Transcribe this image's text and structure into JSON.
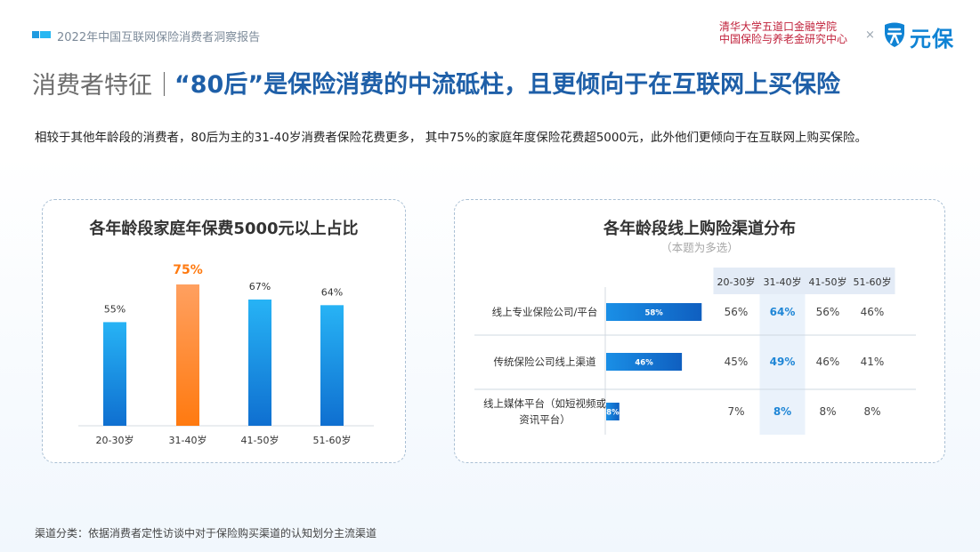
{
  "header": {
    "report_name": "2022年中国互联网保险消费者洞察报告",
    "institution_line1": "清华大学五道口金融学院",
    "institution_line2": "中国保险与养老金研究中心",
    "separator": "×",
    "logo_text": "元保"
  },
  "title": {
    "section": "消费者特征｜",
    "main": "“80后”是保险消费的中流砥柱，且更倾向于在互联网上买保险"
  },
  "subtitle": "相较于其他年龄段的消费者，80后为主的31-40岁消费者保险花费更多， 其中75%的家庭年度保险花费超5000元，此外他们更倾向于在互联网上购买保险。",
  "footnote": "渠道分类：依据消费者定性访谈中对于保险购买渠道的认知划分主流渠道",
  "colors": {
    "bar_blue": "#1b8fe6",
    "bar_highlight": "#ff8a2a",
    "title_blue": "#1e5fa8",
    "highlight_text": "#1f86d6",
    "highlight_col_bg": "#eaf2fb",
    "header_cell_bg": "#e3ebf6"
  },
  "chart_data": [
    {
      "type": "bar",
      "title": "各年龄段家庭年保费5000元以上占比",
      "categories": [
        "20-30岁",
        "31-40岁",
        "41-50岁",
        "51-60岁"
      ],
      "values": [
        55,
        75,
        67,
        64
      ],
      "value_labels": [
        "55%",
        "75%",
        "67%",
        "64%"
      ],
      "highlight_index": 1,
      "ylim": [
        0,
        100
      ]
    },
    {
      "type": "table",
      "title": "各年龄段线上购险渠道分布",
      "note": "（本题为多选）",
      "rows": [
        "线上专业保险公司/平台",
        "传统保险公司线上渠道",
        "线上媒体平台（如短视频或资讯平台）"
      ],
      "row_label_lines": [
        [
          "线上专业保险公司/平台"
        ],
        [
          "传统保险公司线上渠道"
        ],
        [
          "线上媒体平台（如短视频或",
          "资讯平台）"
        ]
      ],
      "overall_values": [
        58,
        46,
        8
      ],
      "overall_labels": [
        "58%",
        "46%",
        "8%"
      ],
      "columns": [
        "20-30岁",
        "31-40岁",
        "41-50岁",
        "51-60岁"
      ],
      "highlight_column": 1,
      "cells": [
        [
          "56%",
          "64%",
          "56%",
          "46%"
        ],
        [
          "45%",
          "49%",
          "46%",
          "41%"
        ],
        [
          "7%",
          "8%",
          "8%",
          "8%"
        ]
      ]
    }
  ]
}
